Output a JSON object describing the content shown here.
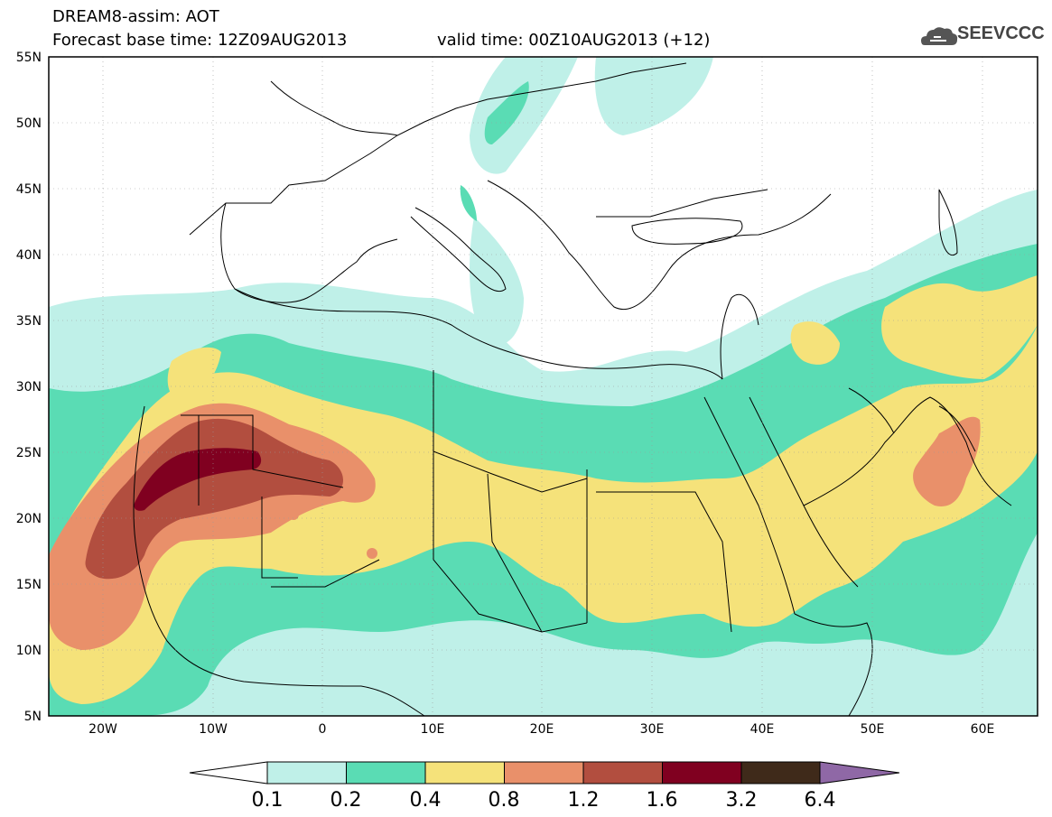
{
  "header": {
    "title": "DREAM8-assim: AOT",
    "forecast_base": "Forecast base time: 12Z09AUG2013",
    "valid_time": "valid time: 00Z10AUG2013 (+12)"
  },
  "logo": {
    "text": "SEEVCCC",
    "icon": "cloud-icon"
  },
  "map": {
    "lat_labels": [
      "55N",
      "50N",
      "45N",
      "40N",
      "35N",
      "30N",
      "25N",
      "20N",
      "15N",
      "10N",
      "5N"
    ],
    "lon_labels": [
      "20W",
      "10W",
      "0",
      "10E",
      "20E",
      "30E",
      "40E",
      "50E",
      "60E"
    ],
    "colors": {
      "c01": "#bff0e8",
      "c02": "#5adcb4",
      "c04": "#f5e27a",
      "c08": "#e9906a",
      "c12": "#b24e3f",
      "c16": "#800020",
      "c32": "#3f2a1a",
      "c64": "#8f68a6"
    }
  },
  "colorbar": {
    "labels": [
      "0.1",
      "0.2",
      "0.4",
      "0.8",
      "1.2",
      "1.6",
      "3.2",
      "6.4"
    ],
    "colors": [
      "#bff0e8",
      "#5adcb4",
      "#f5e27a",
      "#e9906a",
      "#b24e3f",
      "#800020",
      "#3f2a1a"
    ],
    "over_color": "#8f68a6",
    "under_color": "#ffffff"
  }
}
